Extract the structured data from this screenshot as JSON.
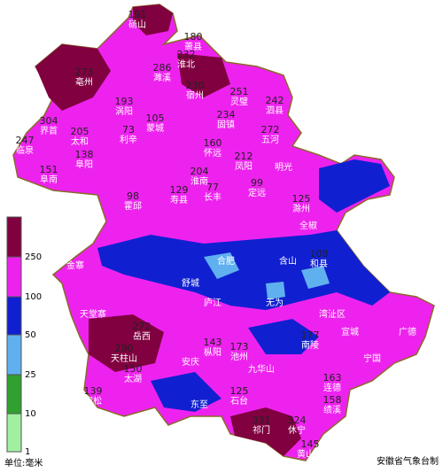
{
  "legend": {
    "labels": [
      "1",
      "10",
      "25",
      "50",
      "100",
      "250"
    ],
    "unit": "单位:毫米"
  },
  "source": "安徽省气象台制",
  "stations": [
    {
      "name": "砀山",
      "value": "191"
    },
    {
      "name": "萧县",
      "value": "180"
    },
    {
      "name": "淮北",
      "value": "232"
    },
    {
      "name": "濉溪",
      "value": "286"
    },
    {
      "name": "亳州",
      "value": "273"
    },
    {
      "name": "宿州",
      "value": "230"
    },
    {
      "name": "灵璧",
      "value": "251"
    },
    {
      "name": "泗县",
      "value": "242"
    },
    {
      "name": "涡阳",
      "value": "193"
    },
    {
      "name": "固镇",
      "value": "234"
    },
    {
      "name": "蒙城",
      "value": "105"
    },
    {
      "name": "界首",
      "value": "304"
    },
    {
      "name": "太和",
      "value": "205"
    },
    {
      "name": "临泉",
      "value": "247"
    },
    {
      "name": "利辛",
      "value": "73"
    },
    {
      "name": "五河",
      "value": "272"
    },
    {
      "name": "怀远",
      "value": "160"
    },
    {
      "name": "凤阳",
      "value": "212"
    },
    {
      "name": "阜阳",
      "value": "138"
    },
    {
      "name": "阜南",
      "value": "151"
    },
    {
      "name": "淮南",
      "value": "204"
    },
    {
      "name": "定远",
      "value": "99"
    },
    {
      "name": "霍邱",
      "value": "98"
    },
    {
      "name": "寿县",
      "value": "129"
    },
    {
      "name": "长丰",
      "value": "77"
    },
    {
      "name": "滁州",
      "value": "125"
    },
    {
      "name": "和县",
      "value": "108"
    },
    {
      "name": "岳西",
      "value": "272"
    },
    {
      "name": "天柱山",
      "value": "290"
    },
    {
      "name": "太湖",
      "value": "150"
    },
    {
      "name": "枞阳",
      "value": "143"
    },
    {
      "name": "池州",
      "value": "173"
    },
    {
      "name": "南陵",
      "value": "177"
    },
    {
      "name": "宿松",
      "value": "139"
    },
    {
      "name": "石台",
      "value": "125"
    },
    {
      "name": "连德",
      "value": "163"
    },
    {
      "name": "绩溪",
      "value": "158"
    },
    {
      "name": "祁门",
      "value": "331"
    },
    {
      "name": "休宁",
      "value": "324"
    },
    {
      "name": "黄山市",
      "value": "145"
    }
  ],
  "places": [
    "明光",
    "全椒",
    "合肥",
    "金寨",
    "含山",
    "舒城",
    "庐江",
    "无为",
    "湾沚区",
    "宣城",
    "广德",
    "宁国",
    "安庆",
    "九华山",
    "东至",
    "天堂寨"
  ]
}
